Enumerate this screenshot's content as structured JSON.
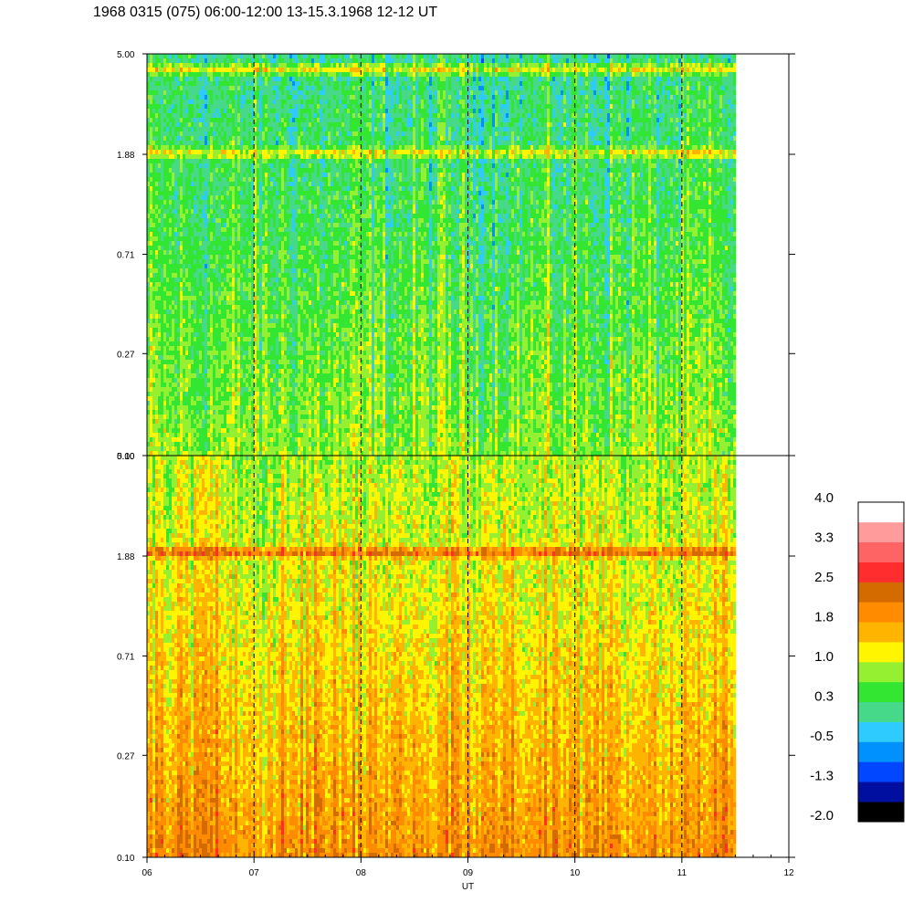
{
  "title": "1968 0315 (075) 06:00-12:00 13-15.3.1968  12-12 UT",
  "chart_data": [
    {
      "type": "heatmap",
      "panel": "upper",
      "y_scale": "log",
      "ylim": [
        0.1,
        5.0
      ],
      "y_tick_labels": [
        "5.00",
        "1.88",
        "0.71",
        "0.27",
        "0.10"
      ],
      "y_ticks": [
        5.0,
        1.88,
        0.71,
        0.27,
        0.1
      ],
      "xlim": [
        6,
        12
      ],
      "data_end_x": 11.5,
      "dominant_level_low_freq": 0.8,
      "dominant_level_high_freq": 0.1,
      "band_features": [
        {
          "y": 4.3,
          "level": 1.2
        },
        {
          "y": 1.9,
          "level": 1.3
        }
      ]
    },
    {
      "type": "heatmap",
      "panel": "lower",
      "y_scale": "log",
      "ylim": [
        0.1,
        5.0
      ],
      "y_tick_labels": [
        "5.00",
        "1.88",
        "0.71",
        "0.27",
        "0.10"
      ],
      "y_ticks": [
        5.0,
        1.88,
        0.71,
        0.27,
        0.1
      ],
      "xlim": [
        6,
        12
      ],
      "data_end_x": 11.5,
      "dominant_level_low_freq": 2.0,
      "dominant_level_high_freq": 0.9,
      "band_features": [
        {
          "y": 1.95,
          "level": 2.4
        }
      ]
    }
  ],
  "x_axis": {
    "label": "UT",
    "tick_labels": [
      "06",
      "07",
      "08",
      "09",
      "10",
      "11",
      "12"
    ],
    "ticks": [
      6,
      7,
      8,
      9,
      10,
      11,
      12
    ],
    "dashed_hours": [
      7,
      8,
      9,
      10,
      11
    ]
  },
  "colorbar": {
    "labels": [
      "4.0",
      "3.3",
      "2.5",
      "1.8",
      "1.0",
      "0.3",
      "-0.5",
      "-1.3",
      "-2.0"
    ],
    "range": [
      -2.0,
      4.0
    ],
    "colors": [
      "#000000",
      "#000fa0",
      "#0047ff",
      "#0091ff",
      "#2dcbff",
      "#46d98a",
      "#32e632",
      "#96f032",
      "#fff500",
      "#ffb400",
      "#ff8c00",
      "#d46b00",
      "#ff2d2d",
      "#ff6464",
      "#ff9b9b",
      "#ffffff"
    ]
  }
}
